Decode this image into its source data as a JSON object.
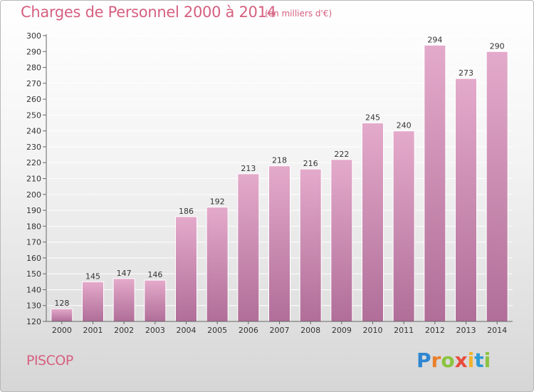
{
  "header": {
    "title": "Charges de Personnel 2000 à 2014",
    "subtitle": "(en milliers d'€)"
  },
  "footer": {
    "place": "PISCOP",
    "logo_letters": [
      "P",
      "r",
      "o",
      "x",
      "i",
      "t",
      "i"
    ],
    "logo_colors": [
      "#2e86d1",
      "#e8812b",
      "#8bc43f",
      "#e84c3d",
      "#f0b428",
      "#2e9bd6",
      "#8bc43f"
    ]
  },
  "colors": {
    "bar_top": "#e4aacb",
    "bar_bottom": "#b06e98",
    "bar_edge": "#ffffff",
    "text": "#333333",
    "grid": "#ffffff",
    "accent": "#d6607f"
  },
  "chart_data": {
    "type": "bar",
    "title": "Charges de Personnel 2000 à 2014",
    "subtitle": "(en milliers d'€)",
    "xlabel": "",
    "ylabel": "",
    "categories": [
      "2000",
      "2001",
      "2002",
      "2003",
      "2004",
      "2005",
      "2006",
      "2007",
      "2008",
      "2009",
      "2010",
      "2011",
      "2012",
      "2013",
      "2014"
    ],
    "values": [
      128,
      145,
      147,
      146,
      186,
      192,
      213,
      218,
      216,
      222,
      245,
      240,
      294,
      273,
      290
    ],
    "ylim": [
      120,
      300
    ],
    "yticks": [
      120,
      130,
      140,
      150,
      160,
      170,
      180,
      190,
      200,
      210,
      220,
      230,
      240,
      250,
      260,
      270,
      280,
      290,
      300
    ],
    "grid": true
  }
}
